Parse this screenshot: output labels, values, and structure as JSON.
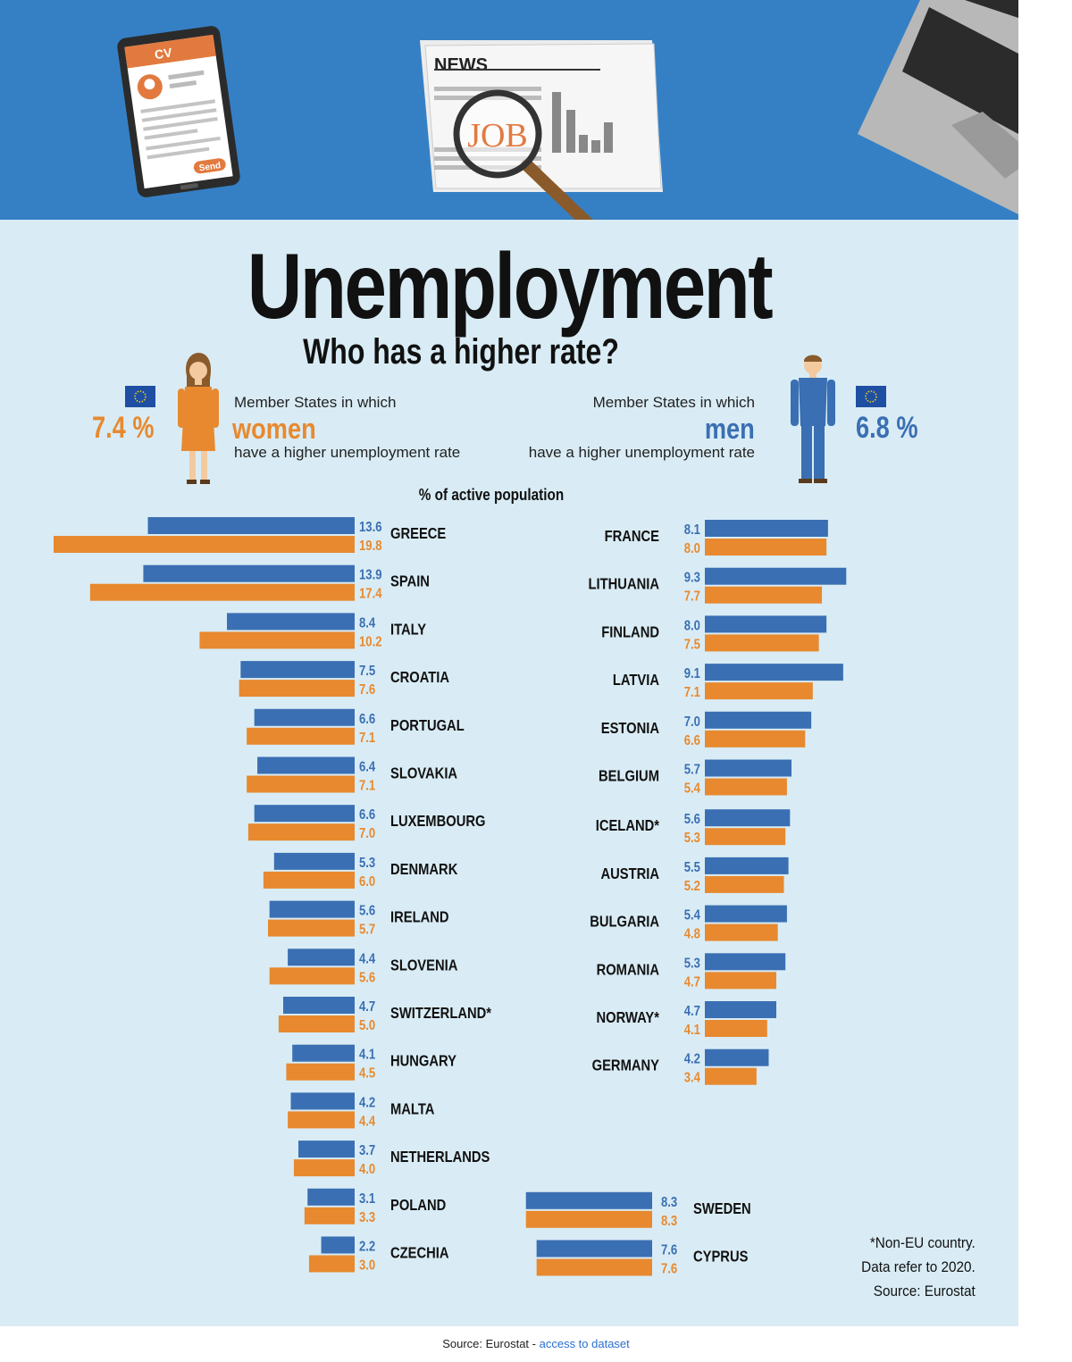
{
  "header": {
    "cv_label": "CV",
    "send_label": "Send",
    "news_label": "NEWS",
    "job_label": "JOB"
  },
  "title": "Unemployment",
  "subtitle": "Who has a higher rate?",
  "women_panel": {
    "rate": "7.4 %",
    "line1": "Member States in which",
    "keyword": "women",
    "line2": "have a higher unemployment rate"
  },
  "men_panel": {
    "rate": "6.8 %",
    "line1": "Member States in which",
    "keyword": "men",
    "line2": "have a higher unemployment rate"
  },
  "colors": {
    "men": "#3a6fb3",
    "women": "#e8892f",
    "header": "#3580c5",
    "background": "#d9ecf5"
  },
  "chart_data": {
    "type": "bar",
    "ylabel": "% of active population",
    "series_colors": {
      "men": "#3a6fb3",
      "women": "#e8892f"
    },
    "women_higher": [
      {
        "country": "GREECE",
        "men": 13.6,
        "women": 19.8
      },
      {
        "country": "SPAIN",
        "men": 13.9,
        "women": 17.4
      },
      {
        "country": "ITALY",
        "men": 8.4,
        "women": 10.2
      },
      {
        "country": "CROATIA",
        "men": 7.5,
        "women": 7.6
      },
      {
        "country": "PORTUGAL",
        "men": 6.6,
        "women": 7.1
      },
      {
        "country": "SLOVAKIA",
        "men": 6.4,
        "women": 7.1
      },
      {
        "country": "LUXEMBOURG",
        "men": 6.6,
        "women": 7.0
      },
      {
        "country": "DENMARK",
        "men": 5.3,
        "women": 6.0
      },
      {
        "country": "IRELAND",
        "men": 5.6,
        "women": 5.7
      },
      {
        "country": "SLOVENIA",
        "men": 4.4,
        "women": 5.6
      },
      {
        "country": "SWITZERLAND*",
        "men": 4.7,
        "women": 5.0
      },
      {
        "country": "HUNGARY",
        "men": 4.1,
        "women": 4.5
      },
      {
        "country": "MALTA",
        "men": 4.2,
        "women": 4.4
      },
      {
        "country": "NETHERLANDS",
        "men": 3.7,
        "women": 4.0
      },
      {
        "country": "POLAND",
        "men": 3.1,
        "women": 3.3
      },
      {
        "country": "CZECHIA",
        "men": 2.2,
        "women": 3.0
      }
    ],
    "men_higher": [
      {
        "country": "FRANCE",
        "men": 8.1,
        "women": 8.0
      },
      {
        "country": "LITHUANIA",
        "men": 9.3,
        "women": 7.7
      },
      {
        "country": "FINLAND",
        "men": 8.0,
        "women": 7.5
      },
      {
        "country": "LATVIA",
        "men": 9.1,
        "women": 7.1
      },
      {
        "country": "ESTONIA",
        "men": 7.0,
        "women": 6.6
      },
      {
        "country": "BELGIUM",
        "men": 5.7,
        "women": 5.4
      },
      {
        "country": "ICELAND*",
        "men": 5.6,
        "women": 5.3
      },
      {
        "country": "AUSTRIA",
        "men": 5.5,
        "women": 5.2
      },
      {
        "country": "BULGARIA",
        "men": 5.4,
        "women": 4.8
      },
      {
        "country": "ROMANIA",
        "men": 5.3,
        "women": 4.7
      },
      {
        "country": "NORWAY*",
        "men": 4.7,
        "women": 4.1
      },
      {
        "country": "GERMANY",
        "men": 4.2,
        "women": 3.4
      }
    ],
    "equal": [
      {
        "country": "SWEDEN",
        "men": 8.3,
        "women": 8.3
      },
      {
        "country": "CYPRUS",
        "men": 7.6,
        "women": 7.6
      }
    ]
  },
  "notes": {
    "line1": "*Non-EU country.",
    "line2": "Data refer to 2020.",
    "line3": "Source: Eurostat"
  },
  "footer": {
    "source": "Source: Eurostat - ",
    "link": "access to dataset"
  }
}
